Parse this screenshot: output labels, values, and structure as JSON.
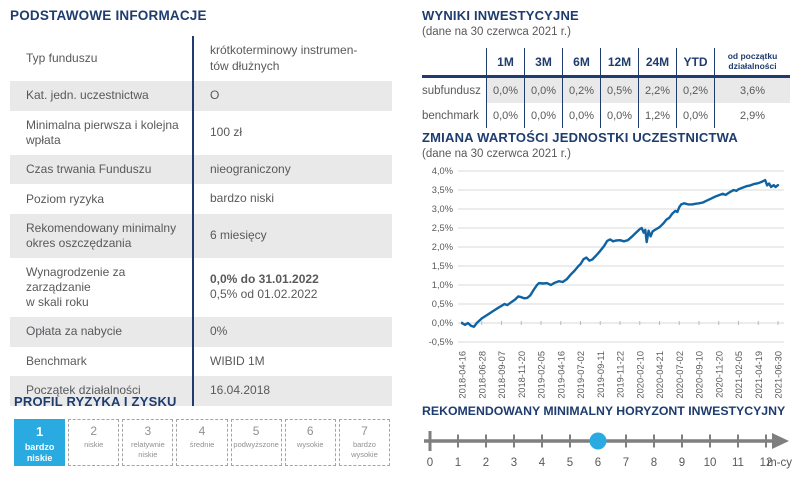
{
  "colors": {
    "navy": "#1e3c6e",
    "accent_cyan": "#29abe2",
    "chart_line": "#1063a3",
    "text_gray": "#58595b",
    "light_gray_bg": "#e9e9ea",
    "grid_gray": "#d9d9d9",
    "axis_label_gray": "#595959",
    "timeline_gray": "#7f7f7f"
  },
  "basic_info": {
    "title": "PODSTAWOWE INFORMACJE",
    "rows": [
      {
        "label": "Typ funduszu",
        "value": "krótkoterminowy instrumen-\ntów dłużnych"
      },
      {
        "label": "Kat. jedn. uczestnictwa",
        "value": "O"
      },
      {
        "label": "Minimalna pierwsza i kolejna\nwpłata",
        "value": "100 zł"
      },
      {
        "label": "Czas trwania Funduszu",
        "value": "nieograniczony"
      },
      {
        "label": "Poziom ryzyka",
        "value": "bardzo niski"
      },
      {
        "label": "Rekomendowany minimalny\nokres oszczędzania",
        "value": "6 miesięcy"
      },
      {
        "label": "Wynagrodzenie za zarządzanie\nw skali roku",
        "value": "0,0% do 31.01.2022",
        "value_bold": true,
        "value2": "0,5% od 01.02.2022"
      },
      {
        "label": "Opłata za nabycie",
        "value": "0%"
      },
      {
        "label": "Benchmark",
        "value": "WIBID 1M"
      },
      {
        "label": "Początek działalności",
        "value": "16.04.2018"
      }
    ]
  },
  "results": {
    "title": "WYNIKI INWESTYCYJNE",
    "subtitle": "(dane na 30 czerwca 2021 r.)",
    "columns": [
      "1M",
      "3M",
      "6M",
      "12M",
      "24M",
      "YTD",
      "od początku działalności"
    ],
    "rows": [
      {
        "name": "subfundusz",
        "values": [
          "0,0%",
          "0,0%",
          "0,2%",
          "0,5%",
          "2,2%",
          "0,2%",
          "3,6%"
        ],
        "highlighted": true
      },
      {
        "name": "benchmark",
        "values": [
          "0,0%",
          "0,0%",
          "0,0%",
          "0,0%",
          "1,2%",
          "0,0%",
          "2,9%"
        ],
        "highlighted": false
      }
    ]
  },
  "chart_data": {
    "type": "line",
    "title": "ZMIANA WARTOŚCI JEDNOSTKI UCZESTNICTWA",
    "subtitle": "(dane na 30 czerwca 2021 r.)",
    "ylabel": "",
    "xlabel": "",
    "ylim": [
      -0.5,
      4.0
    ],
    "ytick_step": 0.5,
    "ytick_labels": [
      "4,0%",
      "3,5%",
      "3,0%",
      "2,5%",
      "2,0%",
      "1,5%",
      "1,0%",
      "0,5%",
      "0,0%",
      "-0,5%"
    ],
    "x_labels": [
      "2018-04-16",
      "2018-06-28",
      "2018-09-07",
      "2018-11-20",
      "2019-02-05",
      "2019-04-16",
      "2019-07-02",
      "2019-09-11",
      "2019-11-22",
      "2020-02-10",
      "2020-04-21",
      "2020-07-02",
      "2020-09-10",
      "2020-11-20",
      "2021-02-05",
      "2021-04-19",
      "2021-06-30"
    ],
    "grid": true,
    "legend": false,
    "series": [
      {
        "name": "subfundusz",
        "unit": "%",
        "points": [
          [
            0,
            0.0
          ],
          [
            0.15,
            -0.05
          ],
          [
            0.3,
            0.0
          ],
          [
            0.45,
            -0.07
          ],
          [
            0.6,
            -0.1
          ],
          [
            0.75,
            0.0
          ],
          [
            1,
            0.12
          ],
          [
            1.3,
            0.22
          ],
          [
            1.6,
            0.32
          ],
          [
            1.9,
            0.42
          ],
          [
            2,
            0.45
          ],
          [
            2.15,
            0.5
          ],
          [
            2.3,
            0.47
          ],
          [
            2.5,
            0.55
          ],
          [
            2.7,
            0.62
          ],
          [
            2.85,
            0.7
          ],
          [
            3,
            0.68
          ],
          [
            3.15,
            0.65
          ],
          [
            3.3,
            0.66
          ],
          [
            3.45,
            0.72
          ],
          [
            3.6,
            0.85
          ],
          [
            3.8,
            1.0
          ],
          [
            3.9,
            1.05
          ],
          [
            4.1,
            1.04
          ],
          [
            4.3,
            1.05
          ],
          [
            4.5,
            1.0
          ],
          [
            4.7,
            1.06
          ],
          [
            4.9,
            1.1
          ],
          [
            5.1,
            1.08
          ],
          [
            5.3,
            1.15
          ],
          [
            5.5,
            1.27
          ],
          [
            5.7,
            1.38
          ],
          [
            5.9,
            1.5
          ],
          [
            6,
            1.55
          ],
          [
            6.15,
            1.68
          ],
          [
            6.3,
            1.72
          ],
          [
            6.45,
            1.64
          ],
          [
            6.6,
            1.67
          ],
          [
            6.8,
            1.78
          ],
          [
            7,
            1.9
          ],
          [
            7.2,
            2.03
          ],
          [
            7.35,
            2.16
          ],
          [
            7.5,
            2.2
          ],
          [
            7.65,
            2.15
          ],
          [
            7.8,
            2.17
          ],
          [
            8,
            2.18
          ],
          [
            8.2,
            2.15
          ],
          [
            8.4,
            2.18
          ],
          [
            8.6,
            2.27
          ],
          [
            8.8,
            2.37
          ],
          [
            9,
            2.47
          ],
          [
            9.1,
            2.5
          ],
          [
            9.2,
            2.38
          ],
          [
            9.28,
            2.45
          ],
          [
            9.35,
            2.13
          ],
          [
            9.45,
            2.43
          ],
          [
            9.55,
            2.28
          ],
          [
            9.65,
            2.41
          ],
          [
            9.8,
            2.46
          ],
          [
            10,
            2.52
          ],
          [
            10.2,
            2.62
          ],
          [
            10.35,
            2.72
          ],
          [
            10.5,
            2.77
          ],
          [
            10.65,
            2.88
          ],
          [
            10.8,
            2.95
          ],
          [
            10.9,
            2.92
          ],
          [
            11,
            3.05
          ],
          [
            11.1,
            3.12
          ],
          [
            11.25,
            3.15
          ],
          [
            11.45,
            3.12
          ],
          [
            11.65,
            3.12
          ],
          [
            11.85,
            3.14
          ],
          [
            12,
            3.15
          ],
          [
            12.2,
            3.17
          ],
          [
            12.4,
            3.22
          ],
          [
            12.6,
            3.27
          ],
          [
            12.8,
            3.32
          ],
          [
            13,
            3.36
          ],
          [
            13.2,
            3.4
          ],
          [
            13.35,
            3.37
          ],
          [
            13.55,
            3.44
          ],
          [
            13.75,
            3.5
          ],
          [
            13.9,
            3.48
          ],
          [
            14,
            3.52
          ],
          [
            14.2,
            3.56
          ],
          [
            14.4,
            3.6
          ],
          [
            14.6,
            3.62
          ],
          [
            14.8,
            3.66
          ],
          [
            15,
            3.68
          ],
          [
            15.2,
            3.72
          ],
          [
            15.35,
            3.76
          ],
          [
            15.45,
            3.62
          ],
          [
            15.55,
            3.67
          ],
          [
            15.65,
            3.58
          ],
          [
            15.78,
            3.63
          ],
          [
            15.88,
            3.58
          ],
          [
            16,
            3.63
          ]
        ]
      }
    ]
  },
  "risk_profile": {
    "title": "PROFIL RYZYKA I ZYSKU",
    "selected": 1,
    "levels": [
      {
        "num": "1",
        "label": "bardzo niskie"
      },
      {
        "num": "2",
        "label": "niskie"
      },
      {
        "num": "3",
        "label": "relatywnie niskie"
      },
      {
        "num": "4",
        "label": "średnie"
      },
      {
        "num": "5",
        "label": "podwyższone"
      },
      {
        "num": "6",
        "label": "wysokie"
      },
      {
        "num": "7",
        "label": "bardzo wysokie"
      }
    ]
  },
  "horizon": {
    "title": "REKOMENDOWANY MINIMALNY HORYZONT INWESTYCYJNY",
    "ticks": [
      "0",
      "1",
      "2",
      "3",
      "4",
      "5",
      "6",
      "7",
      "8",
      "9",
      "10",
      "11",
      "12"
    ],
    "unit": "m-cy",
    "marker_value": 6
  }
}
